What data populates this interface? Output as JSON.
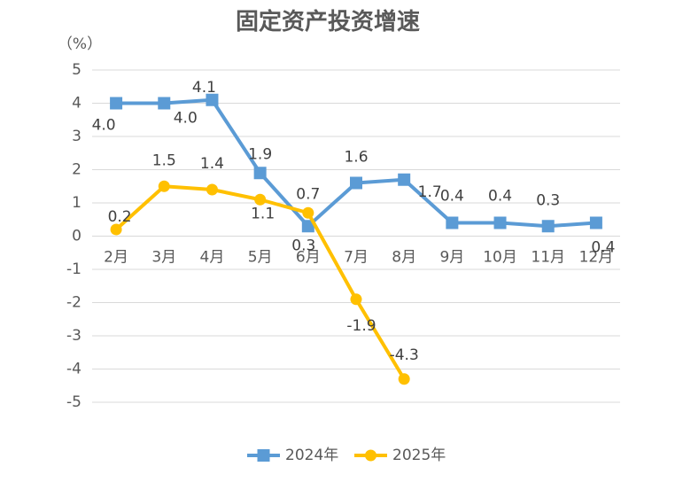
{
  "chart_data": {
    "type": "line",
    "title": "固定资产投资增速",
    "ylabel": "（%）",
    "categories": [
      "2月",
      "3月",
      "4月",
      "5月",
      "6月",
      "7月",
      "8月",
      "9月",
      "10月",
      "11月",
      "12月"
    ],
    "series": [
      {
        "name": "2024年",
        "color": "#5b9bd5",
        "marker": "square",
        "values": [
          4.0,
          4.0,
          4.1,
          1.9,
          0.3,
          1.6,
          1.7,
          0.4,
          0.4,
          0.3,
          0.4
        ],
        "value_labels": [
          "4.0",
          "4.0",
          "4.1",
          "1.9",
          "0.3",
          "1.6",
          "1.7",
          "0.4",
          "0.4",
          "0.3",
          "0.4"
        ]
      },
      {
        "name": "2025年",
        "color": "#ffc000",
        "marker": "circle",
        "values": [
          0.2,
          1.5,
          1.4,
          1.1,
          0.7,
          -1.9,
          -4.3,
          null,
          null,
          null,
          null
        ],
        "value_labels": [
          "0.2",
          "1.5",
          "1.4",
          "1.1",
          "0.7",
          "-1.9",
          "-4.3",
          null,
          null,
          null,
          null
        ]
      }
    ],
    "ylim": [
      -5,
      5
    ],
    "yticks": [
      -5,
      -4,
      -3,
      -2,
      -1,
      0,
      1,
      2,
      3,
      4,
      5
    ],
    "grid": true,
    "legend": "bottom"
  }
}
